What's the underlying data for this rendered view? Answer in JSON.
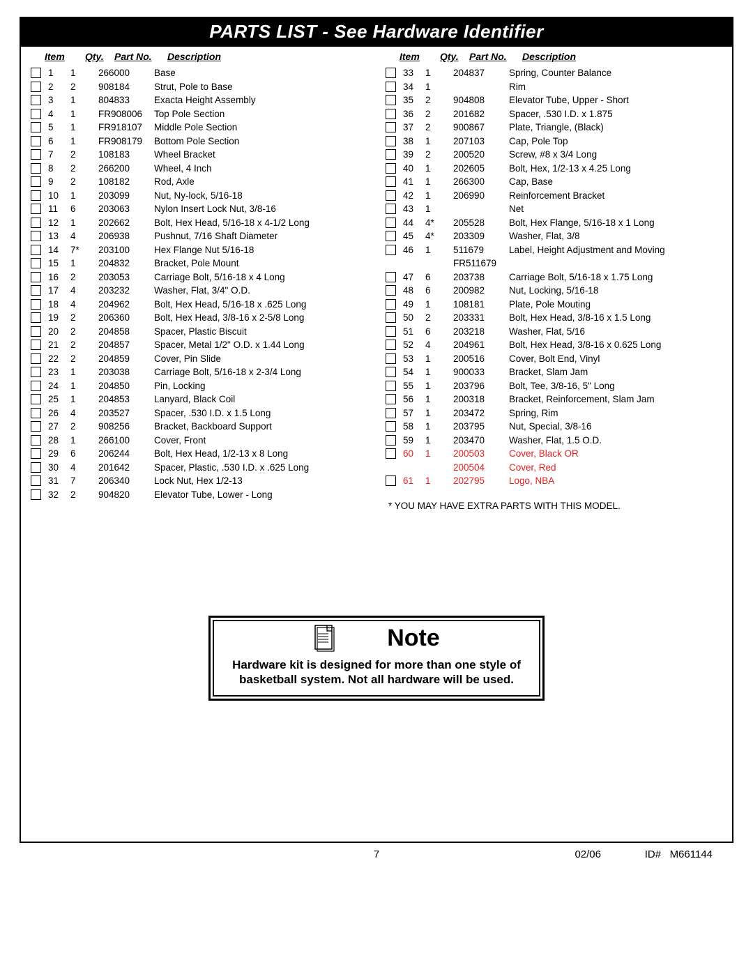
{
  "title": "PARTS LIST - See Hardware Identifier",
  "headers": {
    "item": "Item",
    "qty": "Qty.",
    "part": "Part No.",
    "desc": "Description"
  },
  "left_rows": [
    {
      "chk": true,
      "item": "1",
      "qty": "1",
      "part": "266000",
      "desc": "Base"
    },
    {
      "chk": true,
      "item": "2",
      "qty": "2",
      "part": "908184",
      "desc": "Strut, Pole to Base"
    },
    {
      "chk": true,
      "item": "3",
      "qty": "1",
      "part": "804833",
      "desc": "Exacta Height Assembly"
    },
    {
      "chk": true,
      "item": "4",
      "qty": "1",
      "part": "FR908006",
      "desc": "Top Pole Section"
    },
    {
      "chk": true,
      "item": "5",
      "qty": "1",
      "part": "FR918107",
      "desc": "Middle Pole Section"
    },
    {
      "chk": true,
      "item": "6",
      "qty": "1",
      "part": "FR908179",
      "desc": "Bottom Pole Section"
    },
    {
      "chk": true,
      "item": "7",
      "qty": "2",
      "part": "108183",
      "desc": "Wheel Bracket"
    },
    {
      "chk": true,
      "item": "8",
      "qty": "2",
      "part": "266200",
      "desc": "Wheel, 4 Inch"
    },
    {
      "chk": true,
      "item": "9",
      "qty": "2",
      "part": "108182",
      "desc": "Rod, Axle"
    },
    {
      "chk": true,
      "item": "10",
      "qty": "1",
      "part": "203099",
      "desc": "Nut, Ny-lock, 5/16-18"
    },
    {
      "chk": true,
      "item": "11",
      "qty": "6",
      "part": "203063",
      "desc": "Nylon Insert Lock Nut, 3/8-16"
    },
    {
      "chk": true,
      "item": "12",
      "qty": "1",
      "part": "202662",
      "desc": "Bolt, Hex Head, 5/16-18 x 4-1/2 Long"
    },
    {
      "chk": true,
      "item": "13",
      "qty": "4",
      "part": "206938",
      "desc": "Pushnut, 7/16 Shaft Diameter"
    },
    {
      "chk": true,
      "item": "14",
      "qty": "7*",
      "part": "203100",
      "desc": "Hex Flange Nut 5/16-18"
    },
    {
      "chk": true,
      "item": "15",
      "qty": "1",
      "part": "204832",
      "desc": "Bracket, Pole Mount"
    },
    {
      "chk": true,
      "item": "16",
      "qty": "2",
      "part": "203053",
      "desc": "Carriage Bolt, 5/16-18 x 4 Long"
    },
    {
      "chk": true,
      "item": "17",
      "qty": "4",
      "part": "203232",
      "desc": "Washer, Flat, 3/4\" O.D."
    },
    {
      "chk": true,
      "item": "18",
      "qty": "4",
      "part": "204962",
      "desc": "Bolt, Hex Head, 5/16-18 x .625 Long"
    },
    {
      "chk": true,
      "item": "19",
      "qty": "2",
      "part": "206360",
      "desc": "Bolt, Hex Head, 3/8-16 x 2-5/8 Long"
    },
    {
      "chk": true,
      "item": "20",
      "qty": "2",
      "part": "204858",
      "desc": "Spacer, Plastic Biscuit"
    },
    {
      "chk": true,
      "item": "21",
      "qty": "2",
      "part": "204857",
      "desc": "Spacer, Metal 1/2\" O.D. x 1.44 Long"
    },
    {
      "chk": true,
      "item": "22",
      "qty": "2",
      "part": "204859",
      "desc": "Cover, Pin Slide"
    },
    {
      "chk": true,
      "item": "23",
      "qty": "1",
      "part": "203038",
      "desc": "Carriage Bolt, 5/16-18 x 2-3/4 Long"
    },
    {
      "chk": true,
      "item": "24",
      "qty": "1",
      "part": "204850",
      "desc": "Pin, Locking"
    },
    {
      "chk": true,
      "item": "25",
      "qty": "1",
      "part": "204853",
      "desc": "Lanyard, Black Coil"
    },
    {
      "chk": true,
      "item": "26",
      "qty": "4",
      "part": "203527",
      "desc": "Spacer, .530 I.D. x 1.5 Long"
    },
    {
      "chk": true,
      "item": "27",
      "qty": "2",
      "part": "908256",
      "desc": "Bracket, Backboard Support"
    },
    {
      "chk": true,
      "item": "28",
      "qty": "1",
      "part": "266100",
      "desc": "Cover, Front"
    },
    {
      "chk": true,
      "item": "29",
      "qty": "6",
      "part": "206244",
      "desc": "Bolt, Hex Head, 1/2-13 x 8 Long"
    },
    {
      "chk": true,
      "item": "30",
      "qty": "4",
      "part": "201642",
      "desc": "Spacer, Plastic, .530 I.D. x .625 Long"
    },
    {
      "chk": true,
      "item": "31",
      "qty": "7",
      "part": "206340",
      "desc": "Lock Nut, Hex 1/2-13"
    },
    {
      "chk": true,
      "item": "32",
      "qty": "2",
      "part": "904820",
      "desc": "Elevator Tube, Lower - Long"
    }
  ],
  "right_rows": [
    {
      "chk": true,
      "item": "33",
      "qty": "1",
      "part": "204837",
      "desc": "Spring, Counter Balance"
    },
    {
      "chk": true,
      "item": "34",
      "qty": "1",
      "part": "",
      "desc": "Rim"
    },
    {
      "chk": true,
      "item": "35",
      "qty": "2",
      "part": "904808",
      "desc": "Elevator Tube, Upper - Short"
    },
    {
      "chk": true,
      "item": "36",
      "qty": "2",
      "part": "201682",
      "desc": "Spacer, .530 I.D. x 1.875"
    },
    {
      "chk": true,
      "item": "37",
      "qty": "2",
      "part": "900867",
      "desc": "Plate, Triangle, (Black)"
    },
    {
      "chk": true,
      "item": "38",
      "qty": "1",
      "part": "207103",
      "desc": "Cap, Pole Top"
    },
    {
      "chk": true,
      "item": "39",
      "qty": "2",
      "part": "200520",
      "desc": "Screw, #8 x 3/4 Long"
    },
    {
      "chk": true,
      "item": "40",
      "qty": "1",
      "part": "202605",
      "desc": "Bolt, Hex, 1/2-13 x 4.25 Long"
    },
    {
      "chk": true,
      "item": "41",
      "qty": "1",
      "part": "266300",
      "desc": "Cap, Base"
    },
    {
      "chk": true,
      "item": "42",
      "qty": "1",
      "part": "206990",
      "desc": "Reinforcement Bracket"
    },
    {
      "chk": true,
      "item": "43",
      "qty": "1",
      "part": "",
      "desc": "Net"
    },
    {
      "chk": true,
      "item": "44",
      "qty": "4*",
      "part": "205528",
      "desc": "Bolt, Hex Flange, 5/16-18 x 1 Long"
    },
    {
      "chk": true,
      "item": "45",
      "qty": "4*",
      "part": "203309",
      "desc": "Washer, Flat, 3/8"
    },
    {
      "chk": true,
      "item": "46",
      "qty": "1",
      "part": "511679",
      "desc": "Label, Height Adjustment and Moving"
    },
    {
      "chk": false,
      "item": "",
      "qty": "",
      "part": "FR511679",
      "desc": ""
    },
    {
      "chk": true,
      "item": "47",
      "qty": "6",
      "part": "203738",
      "desc": "Carriage Bolt, 5/16-18 x 1.75 Long"
    },
    {
      "chk": true,
      "item": "48",
      "qty": "6",
      "part": "200982",
      "desc": "Nut, Locking, 5/16-18"
    },
    {
      "chk": true,
      "item": "49",
      "qty": "1",
      "part": "108181",
      "desc": "Plate, Pole Mouting"
    },
    {
      "chk": true,
      "item": "50",
      "qty": "2",
      "part": "203331",
      "desc": "Bolt, Hex Head, 3/8-16 x 1.5 Long"
    },
    {
      "chk": true,
      "item": "51",
      "qty": "6",
      "part": "203218",
      "desc": "Washer, Flat, 5/16"
    },
    {
      "chk": true,
      "item": "52",
      "qty": "4",
      "part": "204961",
      "desc": "Bolt, Hex Head, 3/8-16 x 0.625 Long"
    },
    {
      "chk": true,
      "item": "53",
      "qty": "1",
      "part": "200516",
      "desc": "Cover, Bolt End, Vinyl"
    },
    {
      "chk": true,
      "item": "54",
      "qty": "1",
      "part": "900033",
      "desc": "Bracket, Slam Jam"
    },
    {
      "chk": true,
      "item": "55",
      "qty": "1",
      "part": "203796",
      "desc": "Bolt, Tee, 3/8-16, 5\" Long"
    },
    {
      "chk": true,
      "item": "56",
      "qty": "1",
      "part": "200318",
      "desc": "Bracket, Reinforcement, Slam Jam"
    },
    {
      "chk": true,
      "item": "57",
      "qty": "1",
      "part": "203472",
      "desc": "Spring, Rim"
    },
    {
      "chk": true,
      "item": "58",
      "qty": "1",
      "part": "203795",
      "desc": "Nut, Special, 3/8-16"
    },
    {
      "chk": true,
      "item": "59",
      "qty": "1",
      "part": "203470",
      "desc": "Washer, Flat, 1.5 O.D."
    },
    {
      "chk": true,
      "item": "60",
      "qty": "1",
      "part": "200503",
      "desc": "Cover, Black OR",
      "red": true
    },
    {
      "chk": false,
      "item": "",
      "qty": "",
      "part": "200504",
      "desc": "Cover, Red",
      "red": true
    },
    {
      "chk": true,
      "item": "61",
      "qty": "1",
      "part": "202795",
      "desc": "Logo, NBA",
      "red": true
    }
  ],
  "footnote": "* YOU MAY HAVE EXTRA PARTS WITH THIS MODEL.",
  "note": {
    "title": "Note",
    "text": "Hardware kit is designed for more than one style of basketball system.  Not all hardware will be used."
  },
  "footer": {
    "page": "7",
    "date": "02/06",
    "id_label": "ID#",
    "id_value": "M661144"
  }
}
